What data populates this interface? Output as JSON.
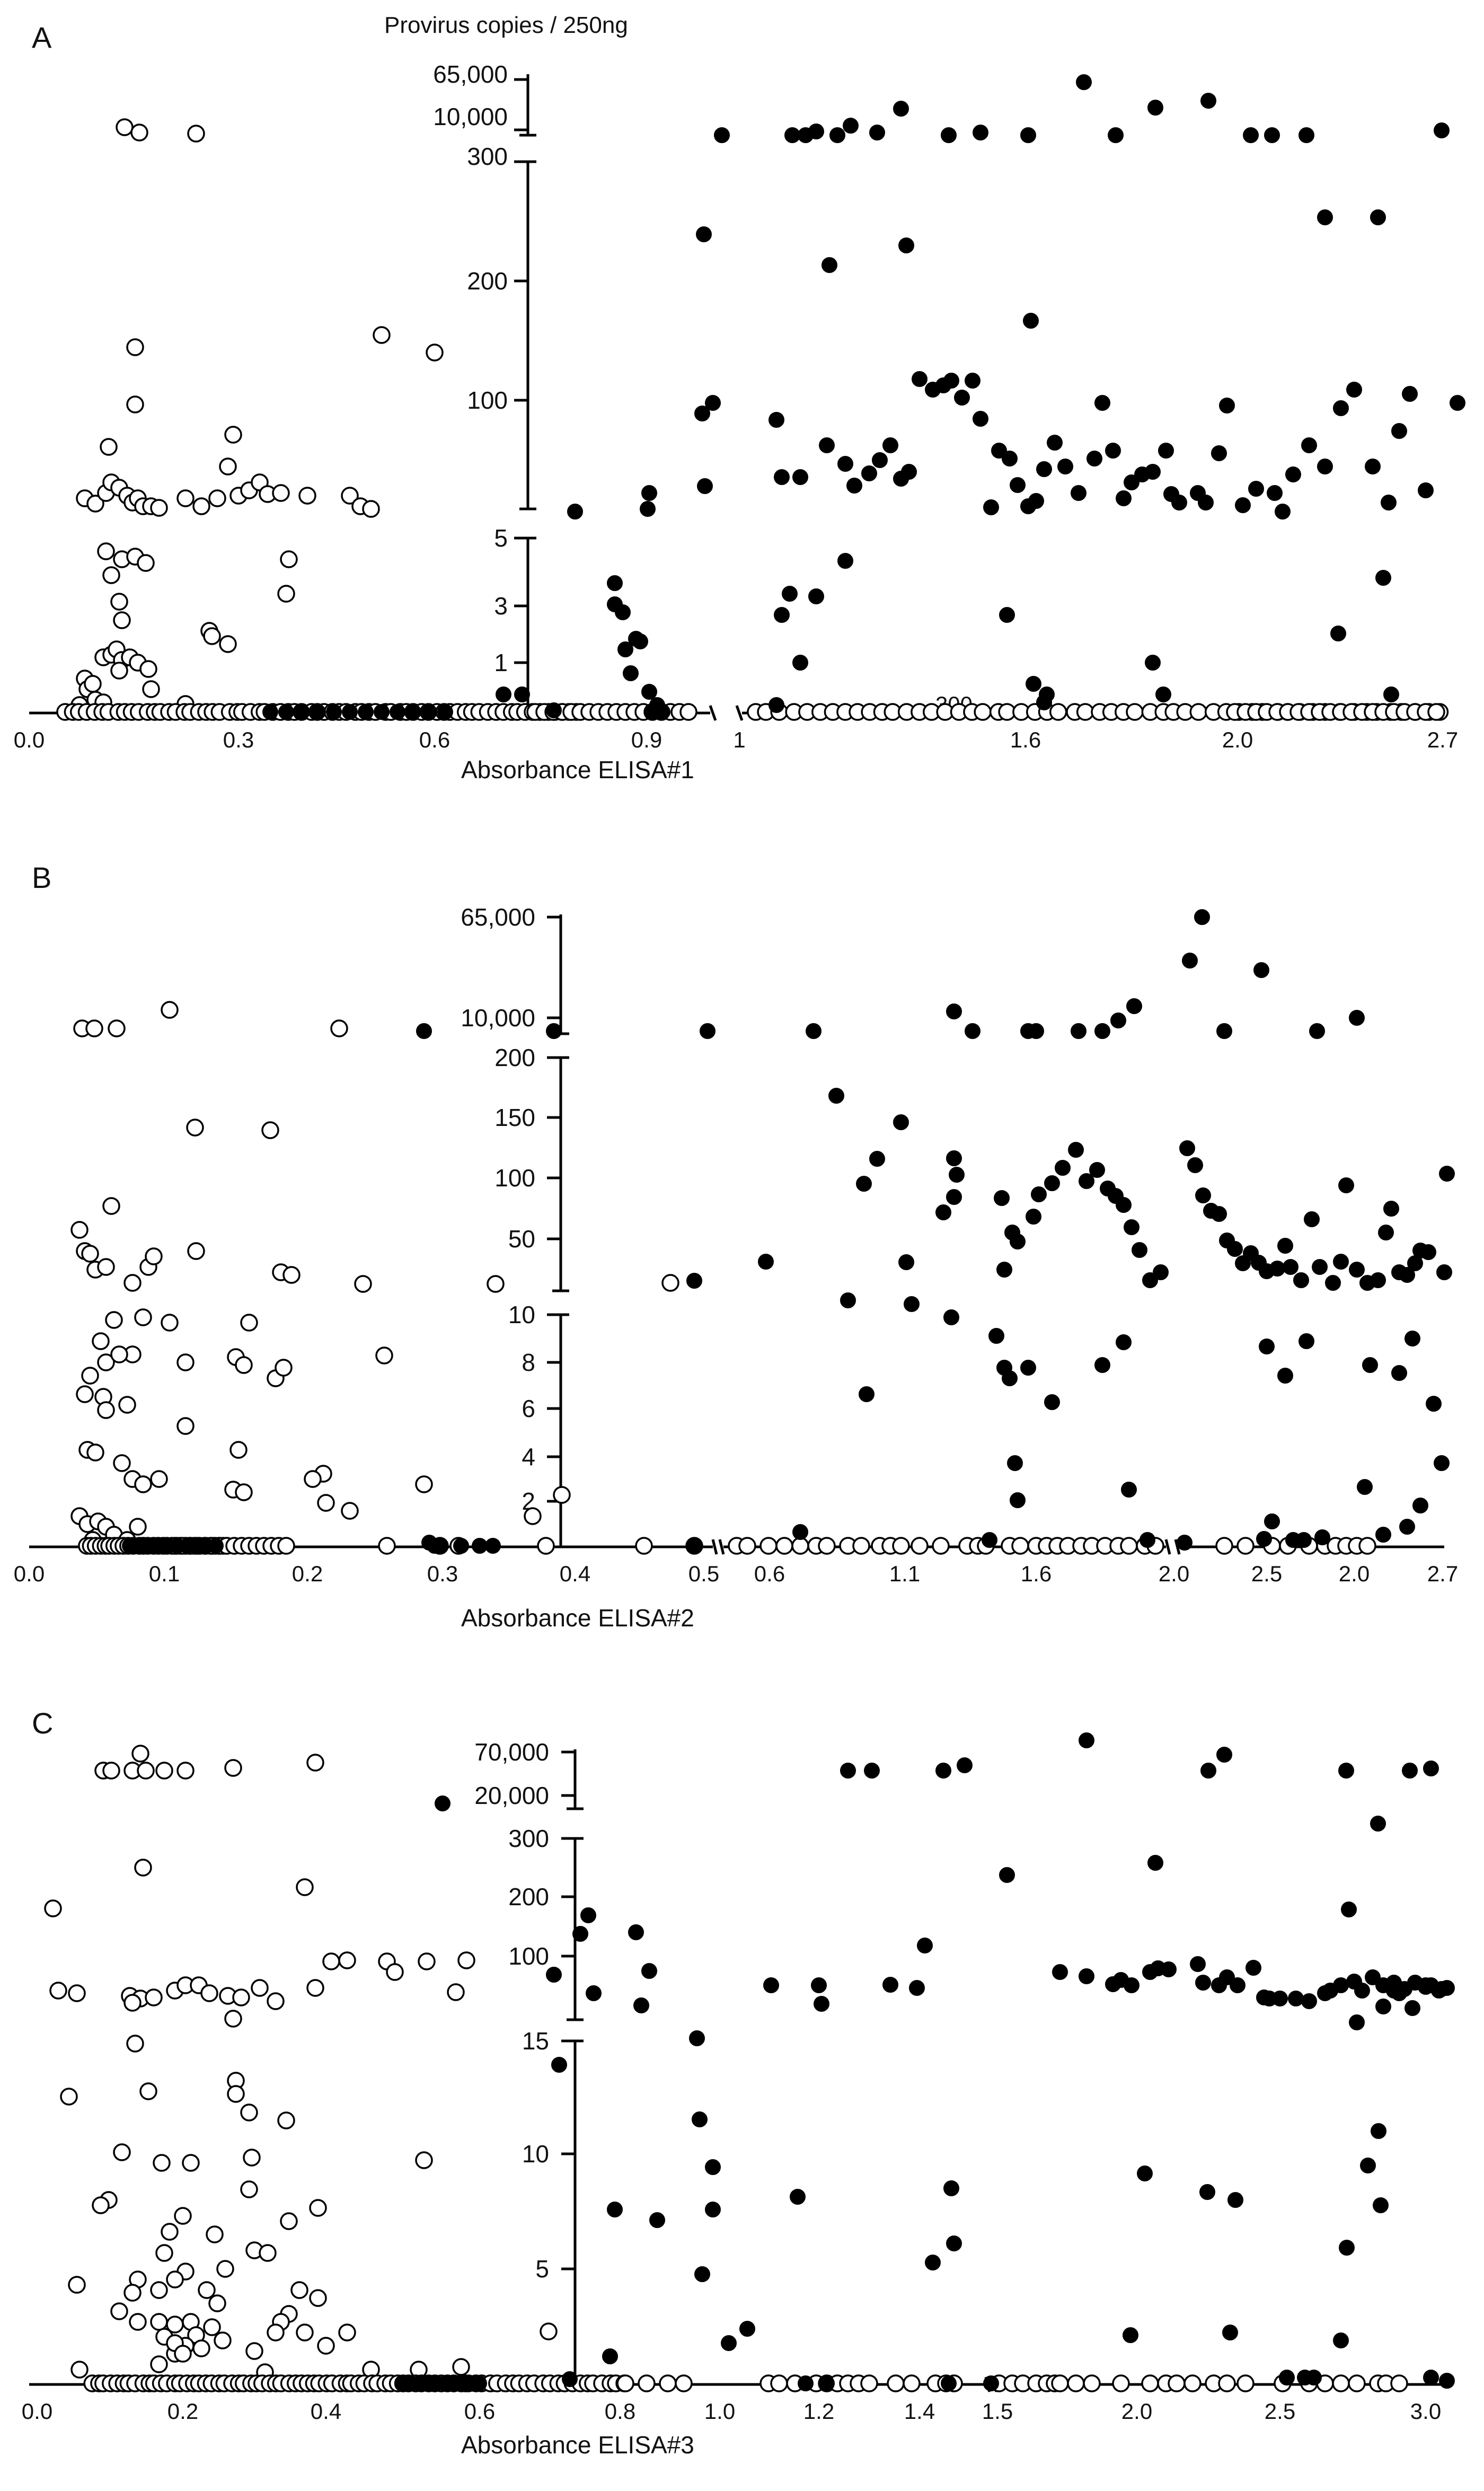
{
  "chart_data": [
    {
      "type": "scatter",
      "panel": "A",
      "title": "",
      "ylabel": "Provirus copies / 250ng",
      "xlabel": "Absorbance ELISA#1",
      "x_ticks": [
        "0.0",
        "0.3",
        "0.6",
        "0.9",
        "1",
        "1.6",
        "2.0",
        "2.7"
      ],
      "y_ticks": [
        "1",
        "3",
        "5",
        "100",
        "200",
        "300",
        "10,000",
        "65,000"
      ],
      "stray_label": "300",
      "series": [
        {
          "name": "open",
          "style": "open"
        },
        {
          "name": "filled",
          "style": "filled"
        }
      ]
    },
    {
      "type": "scatter",
      "panel": "B",
      "title": "",
      "ylabel": "",
      "xlabel": "Absorbance ELISA#2",
      "x_ticks": [
        "0.0",
        "0.1",
        "0.2",
        "0.3",
        "0.4",
        "0.5",
        "0.6",
        "1.1",
        "1.6",
        "2.0",
        "2.5",
        "2.0",
        "2.7"
      ],
      "y_ticks": [
        "2",
        "4",
        "6",
        "8",
        "10",
        "50",
        "100",
        "150",
        "200",
        "10,000",
        "65,000"
      ],
      "series": [
        {
          "name": "open",
          "style": "open"
        },
        {
          "name": "filled",
          "style": "filled"
        }
      ]
    },
    {
      "type": "scatter",
      "panel": "C",
      "title": "",
      "ylabel": "",
      "xlabel": "Absorbance ELISA#3",
      "x_ticks": [
        "0.0",
        "0.2",
        "0.4",
        "0.6",
        "0.8",
        "1.0",
        "1.2",
        "1.4",
        "1.5",
        "2.0",
        "2.5",
        "3.0"
      ],
      "y_ticks": [
        "5",
        "10",
        "15",
        "100",
        "200",
        "300",
        "20,000",
        "70,000"
      ],
      "series": [
        {
          "name": "open",
          "style": "open"
        },
        {
          "name": "filled",
          "style": "filled"
        }
      ]
    }
  ]
}
